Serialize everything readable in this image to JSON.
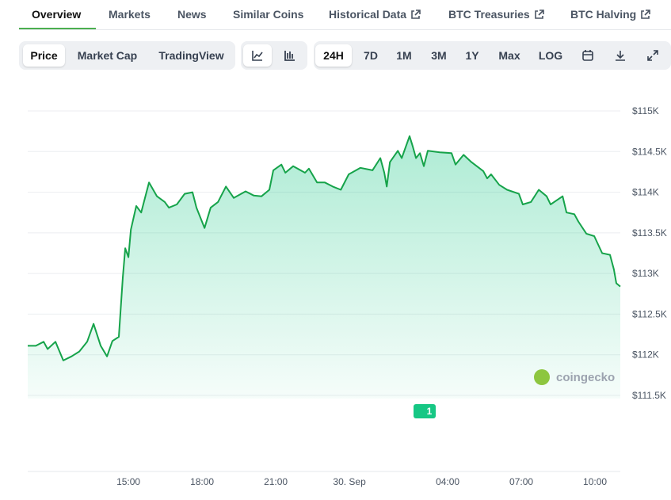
{
  "tabs": [
    {
      "label": "Overview",
      "external": false
    },
    {
      "label": "Markets",
      "external": false
    },
    {
      "label": "News",
      "external": false
    },
    {
      "label": "Similar Coins",
      "external": false
    },
    {
      "label": "Historical Data",
      "external": true
    },
    {
      "label": "BTC Treasuries",
      "external": true
    },
    {
      "label": "BTC Halving",
      "external": true
    }
  ],
  "toolbar": {
    "views": [
      "Price",
      "Market Cap",
      "TradingView"
    ],
    "ranges": [
      "24H",
      "7D",
      "1M",
      "3M",
      "1Y",
      "Max",
      "LOG"
    ]
  },
  "chart_data": {
    "type": "area",
    "x": [
      10.9,
      11.23,
      11.55,
      11.71,
      12.03,
      12.35,
      12.68,
      13.0,
      13.32,
      13.58,
      13.87,
      14.13,
      14.35,
      14.61,
      14.77,
      14.87,
      15.0,
      15.1,
      15.32,
      15.52,
      15.84,
      16.16,
      16.48,
      16.65,
      16.97,
      17.29,
      17.61,
      17.77,
      18.1,
      18.35,
      18.65,
      18.97,
      19.29,
      19.77,
      20.1,
      20.42,
      20.74,
      20.9,
      21.23,
      21.39,
      21.71,
      22.19,
      22.35,
      22.68,
      23.0,
      23.32,
      23.65,
      23.97,
      24.45,
      24.94,
      25.26,
      25.42,
      25.52,
      25.65,
      25.97,
      26.13,
      26.45,
      26.58,
      26.71,
      26.87,
      27.03,
      27.19,
      27.68,
      28.16,
      28.32,
      28.65,
      28.97,
      29.45,
      29.61,
      29.77,
      30.1,
      30.42,
      30.9,
      31.06,
      31.39,
      31.71,
      32.03,
      32.19,
      32.68,
      32.84,
      33.16,
      33.32,
      33.65,
      33.97,
      34.29,
      34.61,
      34.77,
      34.87,
      35.03
    ],
    "series": [
      {
        "color": "#16a34a",
        "values": [
          112110,
          112110,
          112160,
          112070,
          112160,
          111930,
          111980,
          112040,
          112160,
          112380,
          112110,
          111980,
          112170,
          112220,
          112950,
          113310,
          113200,
          113540,
          113830,
          113750,
          114120,
          113950,
          113880,
          113810,
          113850,
          113980,
          114000,
          113810,
          113560,
          113810,
          113880,
          114070,
          113930,
          114010,
          113960,
          113950,
          114030,
          114270,
          114340,
          114240,
          114320,
          114240,
          114290,
          114120,
          114120,
          114070,
          114030,
          114220,
          114300,
          114270,
          114420,
          114240,
          114070,
          114370,
          114510,
          114420,
          114690,
          114560,
          114420,
          114480,
          114320,
          114510,
          114490,
          114480,
          114340,
          114460,
          114370,
          114260,
          114170,
          114220,
          114090,
          114030,
          113980,
          113850,
          113880,
          114030,
          113950,
          113850,
          113950,
          113750,
          113730,
          113640,
          113490,
          113460,
          113250,
          113230,
          113050,
          112880,
          112840
        ]
      }
    ],
    "xlim": [
      10.9,
      35.03
    ],
    "ylim": [
      111500,
      115000
    ],
    "xticks": [
      {
        "value": 15,
        "label": "15:00"
      },
      {
        "value": 18,
        "label": "18:00"
      },
      {
        "value": 21,
        "label": "21:00"
      },
      {
        "value": 24,
        "label": "30. Sep"
      },
      {
        "value": 28,
        "label": "04:00"
      },
      {
        "value": 31,
        "label": "07:00"
      },
      {
        "value": 34,
        "label": "10:00"
      }
    ],
    "yticks": [
      {
        "value": 111500,
        "label": "$111.5K"
      },
      {
        "value": 112000,
        "label": "$112K"
      },
      {
        "value": 112500,
        "label": "$112.5K"
      },
      {
        "value": 113000,
        "label": "$113K"
      },
      {
        "value": 113500,
        "label": "$113.5K"
      },
      {
        "value": 114000,
        "label": "$114K"
      },
      {
        "value": 114500,
        "label": "$114.5K"
      },
      {
        "value": 115000,
        "label": "$115K"
      }
    ],
    "grid": true,
    "watermark": "coingecko",
    "event_marker": "1"
  }
}
